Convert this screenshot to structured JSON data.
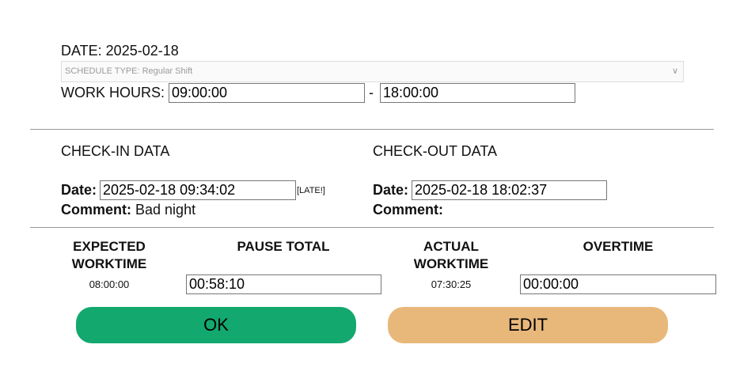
{
  "date_label": "DATE: 2025-02-18",
  "schedule_type": "SCHEDULE TYPE: Regular Shift",
  "work_hours": {
    "label": "WORK HOURS:",
    "start": "09:00:00",
    "separator": "-",
    "end": "18:00:00"
  },
  "checkin": {
    "title": "CHECK-IN DATA",
    "date_label": "Date:",
    "date_value": "2025-02-18 09:34:02",
    "late_badge": "[LATE!]",
    "comment_label": "Comment:",
    "comment_value": "Bad night"
  },
  "checkout": {
    "title": "CHECK-OUT DATA",
    "date_label": "Date:",
    "date_value": "2025-02-18 18:02:37",
    "comment_label": "Comment:",
    "comment_value": ""
  },
  "summary": {
    "expected": {
      "label1": "EXPECTED",
      "label2": "WORKTIME",
      "value": "08:00:00"
    },
    "pause": {
      "label": "PAUSE TOTAL",
      "value": "00:58:10"
    },
    "actual": {
      "label1": "ACTUAL",
      "label2": "WORKTIME",
      "value": "07:30:25"
    },
    "overtime": {
      "label": "OVERTIME",
      "value": "00:00:00"
    }
  },
  "buttons": {
    "ok": "OK",
    "edit": "EDIT"
  },
  "colors": {
    "ok": "#13a86e",
    "edit": "#e8b87b"
  }
}
